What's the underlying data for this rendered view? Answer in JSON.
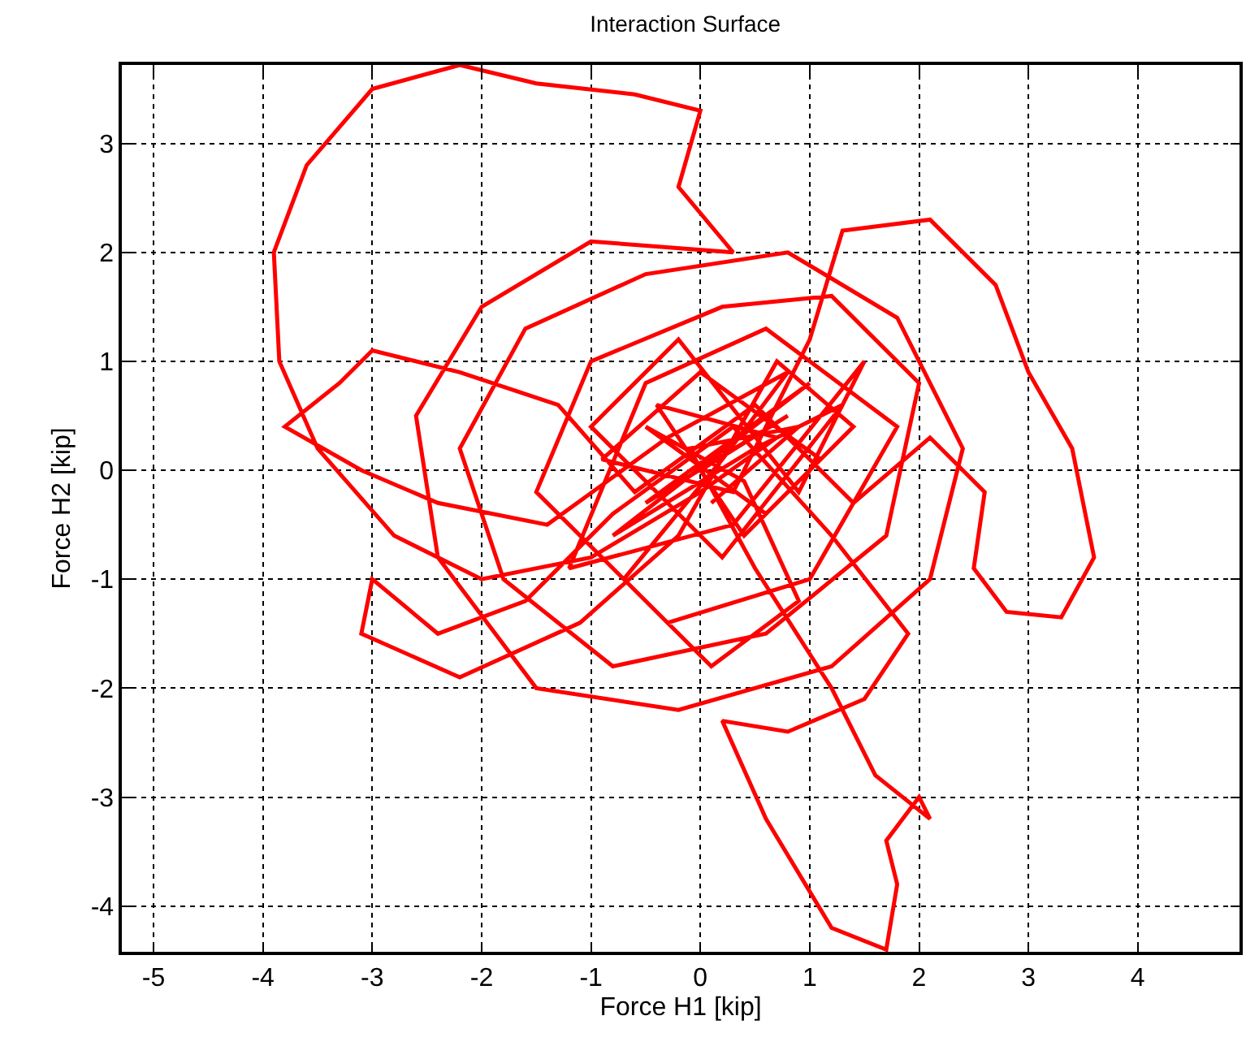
{
  "chart_data": {
    "type": "line",
    "title": "Interaction Surface",
    "xlabel": "Force H1 [kip]",
    "ylabel": "Force H2 [kip]",
    "xlim": [
      -5.29,
      4.93
    ],
    "ylim": [
      -4.42,
      3.72
    ],
    "xticks": [
      -5,
      -4,
      -3,
      -2,
      -1,
      0,
      1,
      2,
      3,
      4
    ],
    "yticks": [
      -4,
      -3,
      -2,
      -1,
      0,
      1,
      2,
      3
    ],
    "grid": true,
    "marker": "none",
    "line_style": "solid",
    "series": [
      {
        "color": "#ff0000",
        "x": [
          0,
          0.8,
          -0.5,
          1.0,
          -0.8,
          0.5,
          1.3,
          0.2,
          -1.0,
          -0.2,
          0.9,
          1.5,
          0.3,
          -1.2,
          -0.5,
          0.6,
          1.8,
          1.0,
          -0.3,
          -1.5,
          -1.0,
          0.2,
          1.2,
          2.0,
          1.7,
          0.6,
          -0.8,
          -1.8,
          -2.2,
          -1.6,
          -0.5,
          0.8,
          1.8,
          2.4,
          2.1,
          1.2,
          -0.2,
          -1.5,
          -2.4,
          -2.6,
          -2.0,
          -1.0,
          0.3,
          -0.2,
          0,
          -0.6,
          -1.5,
          -2.2,
          -3.0,
          -3.6,
          -3.9,
          -3.85,
          -3.5,
          -2.8,
          -2.0,
          -1.0,
          0,
          0.7,
          -0.4,
          0.4,
          1.1,
          0.0,
          -0.9,
          0.3,
          1.0,
          1.3,
          2.1,
          2.7,
          3.0,
          3.4,
          3.6,
          3.3,
          2.8,
          2.5,
          2.6,
          2.1,
          1.4,
          0.5,
          -0.6,
          -1.3,
          -2.2,
          -3.0,
          -3.3,
          -3.8,
          -3.1,
          -2.4,
          -1.4,
          -0.3,
          0.8,
          0.2,
          -0.7,
          0.1,
          0.9,
          0.4,
          -0.5,
          0.6,
          1.4,
          0.7,
          -0.2,
          -1.1,
          -2.2,
          -3.1,
          -3.0,
          -2.4,
          -1.6,
          -0.8,
          0.3,
          1.2,
          1.9,
          1.5,
          0.8,
          0.2,
          0.6,
          1.2,
          1.7,
          1.8,
          1.7,
          2.0,
          2.1,
          1.6,
          1.2,
          0.5,
          -0.1,
          0.9,
          0.1
        ],
        "values": [
          0,
          0.5,
          -0.3,
          0.8,
          -0.6,
          0.2,
          0.6,
          -0.8,
          0.4,
          1.2,
          -0.2,
          1.0,
          -0.5,
          -0.9,
          0.8,
          1.3,
          0.4,
          -1.0,
          -1.4,
          -0.2,
          1.0,
          1.5,
          1.6,
          0.8,
          -0.6,
          -1.5,
          -1.8,
          -1.0,
          0.2,
          1.3,
          1.8,
          2.0,
          1.4,
          0.2,
          -1.0,
          -1.8,
          -2.2,
          -2.0,
          -0.8,
          0.5,
          1.5,
          2.1,
          2.0,
          2.6,
          3.3,
          3.45,
          3.55,
          3.72,
          3.5,
          2.8,
          2.0,
          1.0,
          0.2,
          -0.6,
          -1.0,
          -0.8,
          -0.2,
          0.3,
          0.6,
          -0.6,
          0.1,
          0.9,
          0.1,
          -0.2,
          1.2,
          2.2,
          2.3,
          1.7,
          0.9,
          0.2,
          -0.8,
          -1.35,
          -1.3,
          -0.9,
          -0.2,
          0.3,
          -0.3,
          0.6,
          -0.2,
          0.6,
          0.9,
          1.1,
          0.8,
          0.4,
          0,
          -0.3,
          -0.5,
          0.3,
          0.9,
          0.1,
          -1.0,
          -1.8,
          -1.2,
          -0.1,
          0.4,
          -0.4,
          0.4,
          1.0,
          -0.6,
          -1.4,
          -1.9,
          -1.5,
          -1.0,
          -1.5,
          -1.2,
          -0.4,
          0.4,
          -0.6,
          -1.5,
          -2.1,
          -2.4,
          -2.3,
          -3.2,
          -4.2,
          -4.4,
          -3.8,
          -3.4,
          -3.0,
          -3.2,
          -2.8,
          -2.0,
          -0.9,
          0.2,
          0.4,
          -0.3
        ]
      }
    ]
  }
}
